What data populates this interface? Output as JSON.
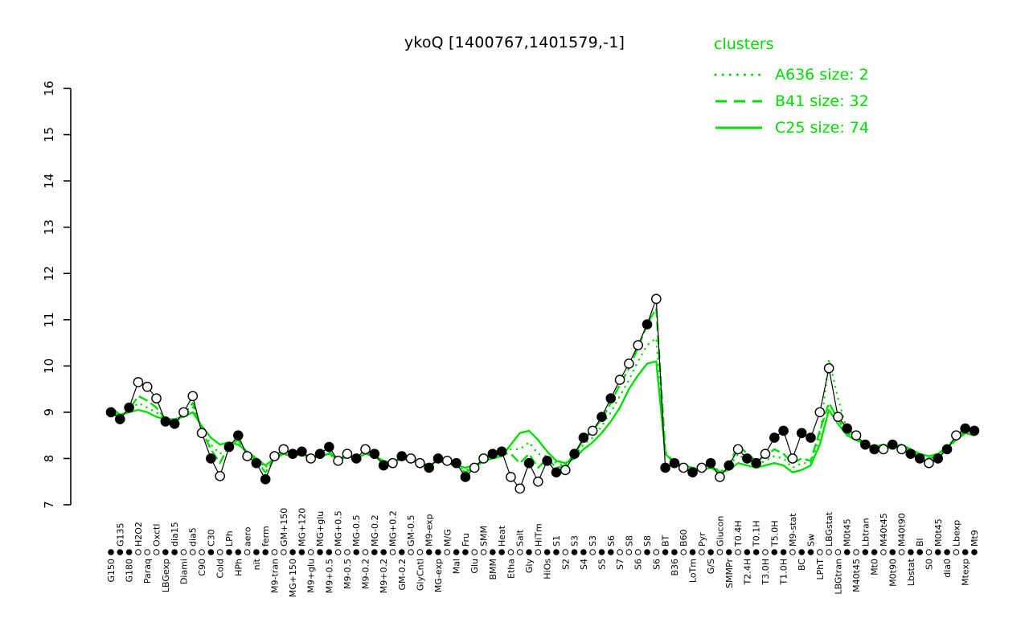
{
  "title": "ykoQ [1400767,1401579,-1]",
  "legend": {
    "title": "clusters",
    "color": "#00dd00",
    "items": [
      {
        "label": "A636 size: 2",
        "style": "dotted"
      },
      {
        "label": "B41 size: 32",
        "style": "dashed"
      },
      {
        "label": "C25 size: 74",
        "style": "solid"
      }
    ]
  },
  "chart_data": {
    "type": "line",
    "title": "ykoQ [1400767,1401579,-1]",
    "xlabel": "",
    "ylabel": "",
    "ylim": [
      7,
      16
    ],
    "yticks": [
      7,
      8,
      9,
      10,
      11,
      12,
      13,
      14,
      15,
      16
    ],
    "grid": false,
    "legend_position": "top-right",
    "point_color_filled": "#000000",
    "point_color_open": "#ffffff",
    "line_color": "#000000",
    "cluster_color": "#00dd00",
    "categories": [
      "G150",
      "G135",
      "G180",
      "H2O2",
      "Paraq",
      "Oxctl",
      "LBGexp",
      "dia15",
      "Diami",
      "dia5",
      "C90",
      "C30",
      "Cold",
      "LPh",
      "HPh",
      "aero",
      "nit",
      "ferm",
      "M9-tran",
      "GM+150",
      "MG+150",
      "MG+120",
      "M9+glu",
      "MG+glu",
      "M9+0.5",
      "MG+0.5",
      "M9-0.5",
      "MG-0.5",
      "M9-0.2",
      "MG-0.2",
      "M9+0.2",
      "MG+0.2",
      "GM-0.2",
      "GM-0.5",
      "GlyCntl",
      "M9-exp",
      "MG-exp",
      "M/G",
      "Mal",
      "Fru",
      "Glu",
      "SMM",
      "BMM",
      "Heat",
      "Etha",
      "Salt",
      "Gly",
      "HiTm",
      "HiOs",
      "S1",
      "S2",
      "S3",
      "S4",
      "S3",
      "S5",
      "S6",
      "S7",
      "S8",
      "S6",
      "S8",
      "S6",
      "BT",
      "B36",
      "B60",
      "LoTm",
      "Pyr",
      "G/S",
      "Glucon",
      "SMMPr",
      "T0.4H",
      "T2.4H",
      "T0.1H",
      "T3.0H",
      "T5.0H",
      "T1.0H",
      "M9-stat",
      "BC",
      "Sw",
      "LPhT",
      "LBGstat",
      "LBGtran",
      "M0t45",
      "M40t45",
      "Lbtran",
      "Mt0",
      "M40t45",
      "M0t90",
      "M40t90",
      "Lbstat",
      "Bl",
      "S0",
      "M0t45",
      "dia0",
      "Lbexp",
      "Mtexp",
      "Mt9"
    ],
    "points": {
      "name": "ykoQ expression",
      "values": [
        9.0,
        8.85,
        9.1,
        9.65,
        9.55,
        9.3,
        8.8,
        8.75,
        9.0,
        9.35,
        8.55,
        8.0,
        7.62,
        8.25,
        8.5,
        8.05,
        7.9,
        7.55,
        8.05,
        8.2,
        8.1,
        8.15,
        8.0,
        8.1,
        8.25,
        7.95,
        8.1,
        8.0,
        8.2,
        8.1,
        7.85,
        7.9,
        8.05,
        8.0,
        7.9,
        7.8,
        8.0,
        7.95,
        7.9,
        7.6,
        7.8,
        8.0,
        8.1,
        8.15,
        7.6,
        7.35,
        7.9,
        7.5,
        7.95,
        7.7,
        7.75,
        8.1,
        8.45,
        8.6,
        8.9,
        9.3,
        9.7,
        10.05,
        10.45,
        10.9,
        11.45,
        7.8,
        7.9,
        7.8,
        7.7,
        7.8,
        7.9,
        7.6,
        7.85,
        8.2,
        8.0,
        7.9,
        8.1,
        8.45,
        8.6,
        8.0,
        8.55,
        8.45,
        9.0,
        9.95,
        8.9,
        8.65,
        8.5,
        8.3,
        8.2,
        8.2,
        8.3,
        8.2,
        8.1,
        8.0,
        7.9,
        8.0,
        8.2,
        8.5,
        8.65,
        8.6
      ],
      "filled": [
        1,
        1,
        1,
        0,
        0,
        0,
        1,
        1,
        0,
        0,
        0,
        1,
        0,
        1,
        1,
        0,
        1,
        1,
        0,
        0,
        1,
        1,
        0,
        1,
        1,
        0,
        0,
        1,
        0,
        1,
        1,
        0,
        1,
        0,
        0,
        1,
        1,
        0,
        1,
        1,
        0,
        0,
        1,
        1,
        0,
        0,
        1,
        0,
        1,
        1,
        0,
        1,
        1,
        0,
        1,
        1,
        0,
        0,
        0,
        1,
        0,
        1,
        1,
        0,
        1,
        0,
        1,
        0,
        1,
        0,
        1,
        1,
        0,
        1,
        1,
        0,
        1,
        1,
        0,
        0,
        0,
        1,
        0,
        1,
        1,
        0,
        1,
        0,
        1,
        1,
        0,
        1,
        1,
        0,
        1,
        1
      ]
    },
    "series": [
      {
        "name": "A636 size: 2",
        "style": "dotted",
        "color": "#00dd00",
        "values": [
          9.0,
          8.9,
          9.0,
          9.2,
          9.1,
          9.0,
          8.85,
          8.8,
          8.9,
          9.1,
          8.65,
          8.3,
          8.1,
          8.3,
          8.35,
          8.1,
          8.0,
          7.8,
          8.0,
          8.1,
          8.05,
          8.1,
          8.0,
          8.05,
          8.1,
          7.95,
          8.05,
          8.0,
          8.1,
          8.05,
          7.9,
          7.9,
          8.0,
          7.95,
          7.9,
          7.85,
          7.95,
          7.9,
          7.85,
          7.75,
          7.8,
          7.95,
          8.0,
          8.05,
          8.2,
          8.2,
          8.35,
          8.1,
          8.05,
          7.9,
          7.85,
          8.05,
          8.3,
          8.45,
          8.7,
          9.0,
          9.35,
          9.7,
          10.1,
          10.45,
          10.6,
          8.1,
          7.9,
          7.85,
          7.8,
          7.75,
          7.85,
          7.7,
          7.8,
          8.1,
          7.95,
          7.85,
          7.95,
          8.05,
          8.0,
          7.8,
          7.9,
          7.9,
          8.45,
          10.15,
          9.3,
          8.6,
          8.45,
          8.3,
          8.25,
          8.25,
          8.2,
          8.25,
          8.15,
          8.05,
          8.0,
          8.05,
          8.2,
          8.4,
          8.55,
          8.5
        ]
      },
      {
        "name": "B41 size: 32",
        "style": "dashed",
        "color": "#00dd00",
        "values": [
          9.05,
          8.9,
          9.05,
          9.35,
          9.25,
          9.1,
          8.85,
          8.8,
          8.95,
          9.2,
          8.6,
          8.2,
          7.9,
          8.3,
          8.4,
          8.1,
          7.95,
          7.7,
          8.0,
          8.15,
          8.1,
          8.1,
          8.0,
          8.05,
          8.15,
          7.95,
          8.05,
          8.0,
          8.15,
          8.05,
          7.9,
          7.9,
          8.0,
          7.95,
          7.9,
          7.85,
          7.95,
          7.9,
          7.85,
          7.7,
          7.8,
          7.95,
          8.05,
          8.1,
          8.1,
          7.9,
          8.1,
          7.8,
          8.0,
          7.8,
          7.85,
          8.1,
          8.4,
          8.6,
          8.85,
          9.2,
          9.6,
          9.95,
          10.4,
          10.9,
          11.25,
          8.15,
          7.9,
          7.85,
          7.75,
          7.8,
          7.9,
          7.7,
          7.85,
          8.3,
          8.1,
          7.95,
          8.05,
          8.2,
          8.1,
          7.9,
          8.0,
          7.95,
          8.6,
          9.2,
          8.85,
          8.55,
          8.45,
          8.3,
          8.25,
          8.3,
          8.25,
          8.3,
          8.15,
          8.05,
          8.0,
          8.05,
          8.25,
          8.45,
          8.6,
          8.55
        ]
      },
      {
        "name": "C25 size: 74",
        "style": "solid",
        "color": "#00dd00",
        "values": [
          9.1,
          8.95,
          9.0,
          9.05,
          9.0,
          8.9,
          8.85,
          8.85,
          8.9,
          9.0,
          8.7,
          8.45,
          8.3,
          8.35,
          8.3,
          8.15,
          8.0,
          7.85,
          8.0,
          8.1,
          8.05,
          8.1,
          8.0,
          8.05,
          8.1,
          8.0,
          8.05,
          8.0,
          8.1,
          8.05,
          7.95,
          7.9,
          8.0,
          7.95,
          7.9,
          7.85,
          7.95,
          7.9,
          7.85,
          7.8,
          7.85,
          7.95,
          8.0,
          8.05,
          8.3,
          8.55,
          8.6,
          8.4,
          8.15,
          7.95,
          7.9,
          8.0,
          8.2,
          8.35,
          8.55,
          8.8,
          9.1,
          9.5,
          9.8,
          10.05,
          10.1,
          8.1,
          7.9,
          7.85,
          7.8,
          7.75,
          7.8,
          7.7,
          7.75,
          7.9,
          7.85,
          7.8,
          7.85,
          7.9,
          7.85,
          7.7,
          7.75,
          7.85,
          8.3,
          9.05,
          8.75,
          8.5,
          8.4,
          8.3,
          8.25,
          8.3,
          8.25,
          8.3,
          8.2,
          8.1,
          8.05,
          8.1,
          8.25,
          8.4,
          8.55,
          8.5
        ]
      }
    ]
  }
}
